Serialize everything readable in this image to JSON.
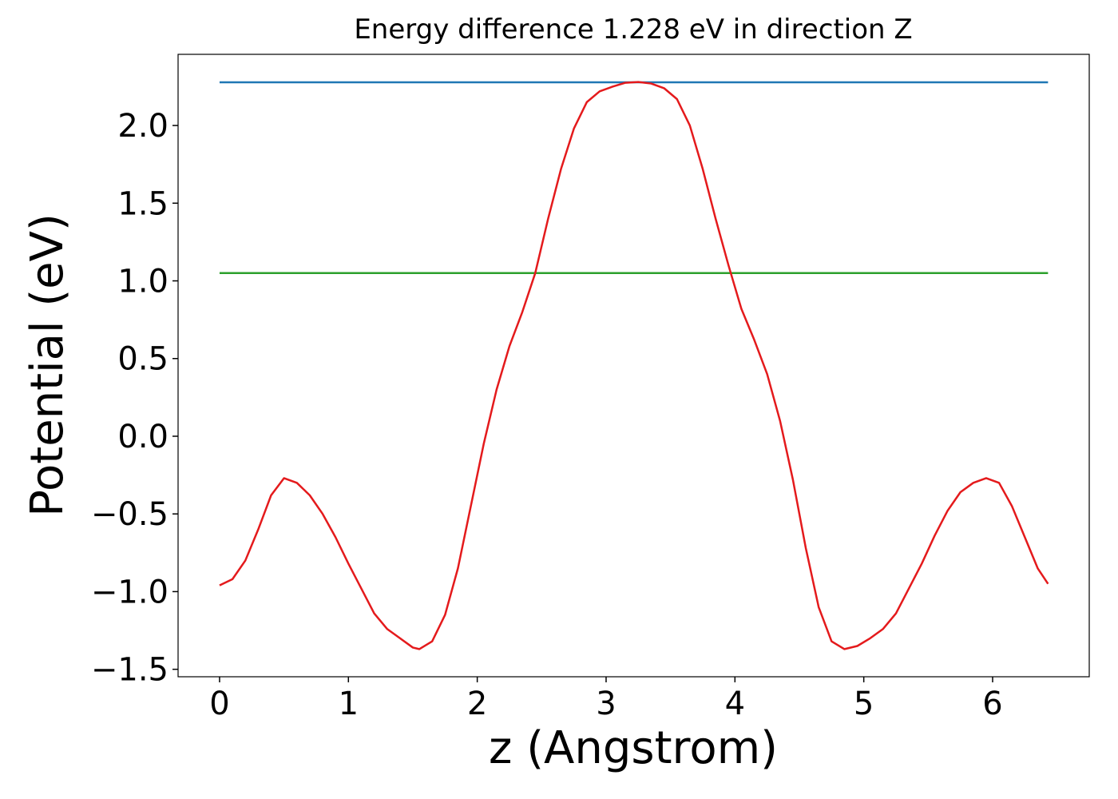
{
  "chart_data": {
    "type": "line",
    "title": "Energy difference 1.228 eV in direction Z",
    "xlabel": "z (Angstrom)",
    "ylabel": "Potential (eV)",
    "xlim": [
      -0.322,
      6.75
    ],
    "ylim": [
      -1.548,
      2.458
    ],
    "xticks": [
      0,
      1,
      2,
      3,
      4,
      5,
      6
    ],
    "yticks": [
      {
        "value": -1.5,
        "label": "−1.5"
      },
      {
        "value": -1,
        "label": "−1.0"
      },
      {
        "value": -0.5,
        "label": "−0.5"
      },
      {
        "value": 0,
        "label": "0.0"
      },
      {
        "value": 0.5,
        "label": "0.5"
      },
      {
        "value": 1,
        "label": "1.0"
      },
      {
        "value": 1.5,
        "label": "1.5"
      },
      {
        "value": 2,
        "label": "2.0"
      }
    ],
    "grid": false,
    "series": [
      {
        "color": "#1f77b4",
        "x": [
          0,
          6.43
        ],
        "values": [
          2.278,
          2.278
        ]
      },
      {
        "color": "#2ca02c",
        "x": [
          0,
          6.43
        ],
        "values": [
          1.05,
          1.05
        ]
      },
      {
        "color": "#e41a1c",
        "x": [
          0,
          0.1,
          0.2,
          0.3,
          0.4,
          0.5,
          0.6,
          0.7,
          0.8,
          0.9,
          1.0,
          1.1,
          1.2,
          1.3,
          1.4,
          1.5,
          1.55,
          1.65,
          1.75,
          1.85,
          1.95,
          2.05,
          2.15,
          2.25,
          2.35,
          2.45,
          2.55,
          2.65,
          2.75,
          2.85,
          2.95,
          3.05,
          3.15,
          3.25,
          3.35,
          3.45,
          3.55,
          3.65,
          3.75,
          3.85,
          3.95,
          4.05,
          4.15,
          4.25,
          4.35,
          4.45,
          4.55,
          4.65,
          4.75,
          4.85,
          4.95,
          5.05,
          5.15,
          5.25,
          5.35,
          5.45,
          5.55,
          5.65,
          5.75,
          5.85,
          5.95,
          6.05,
          6.15,
          6.25,
          6.35,
          6.43
        ],
        "values": [
          -0.96,
          -0.92,
          -0.8,
          -0.6,
          -0.38,
          -0.27,
          -0.3,
          -0.38,
          -0.5,
          -0.65,
          -0.82,
          -0.98,
          -1.14,
          -1.24,
          -1.3,
          -1.36,
          -1.37,
          -1.32,
          -1.15,
          -0.85,
          -0.45,
          -0.05,
          0.3,
          0.58,
          0.8,
          1.05,
          1.4,
          1.72,
          1.98,
          2.15,
          2.22,
          2.25,
          2.275,
          2.28,
          2.27,
          2.24,
          2.17,
          2.0,
          1.72,
          1.4,
          1.1,
          0.82,
          0.62,
          0.4,
          0.1,
          -0.28,
          -0.72,
          -1.1,
          -1.32,
          -1.37,
          -1.35,
          -1.3,
          -1.24,
          -1.14,
          -0.98,
          -0.82,
          -0.64,
          -0.48,
          -0.36,
          -0.3,
          -0.27,
          -0.3,
          -0.45,
          -0.65,
          -0.85,
          -0.95
        ]
      }
    ]
  }
}
